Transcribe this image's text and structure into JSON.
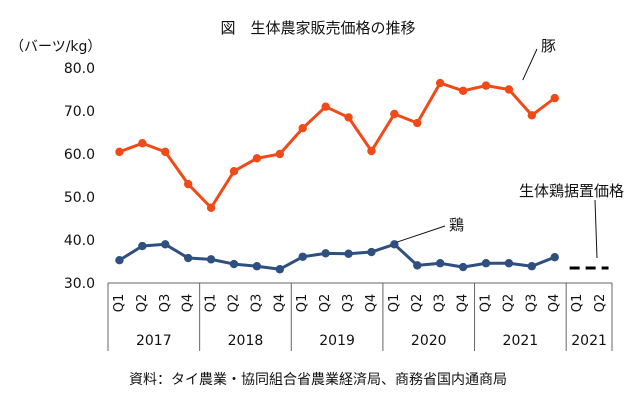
{
  "chart_data": {
    "type": "line",
    "title": "図　生体農家販売価格の推移",
    "ylabel": "（バーツ/kg）",
    "ylim": [
      30,
      80
    ],
    "yticks": [
      "30.0",
      "40.0",
      "50.0",
      "60.0",
      "70.0",
      "80.0"
    ],
    "quarters": [
      "Q1",
      "Q2",
      "Q3",
      "Q4",
      "Q1",
      "Q2",
      "Q3",
      "Q4",
      "Q1",
      "Q2",
      "Q3",
      "Q4",
      "Q1",
      "Q2",
      "Q3",
      "Q4",
      "Q1",
      "Q2",
      "Q3",
      "Q4",
      "Q1",
      "Q2"
    ],
    "years": [
      "2017",
      "2018",
      "2019",
      "2020",
      "2021",
      "2021"
    ],
    "series": [
      {
        "name": "豚",
        "color": "#f04a18",
        "values": [
          60.5,
          62.5,
          60.5,
          53.0,
          47.5,
          56.0,
          59.0,
          60.0,
          66.0,
          71.0,
          68.5,
          60.7,
          69.3,
          67.2,
          76.5,
          74.7,
          75.9,
          75.0,
          69.0,
          73.0,
          null,
          null
        ]
      },
      {
        "name": "鶏",
        "color": "#2e4f7f",
        "values": [
          35.3,
          38.6,
          39.0,
          35.8,
          35.5,
          34.4,
          33.9,
          33.2,
          36.1,
          36.9,
          36.8,
          37.2,
          39.0,
          34.1,
          34.6,
          33.7,
          34.6,
          34.6,
          33.9,
          36.0,
          null,
          null
        ]
      },
      {
        "name": "生体鶏据置価格",
        "color": "#000000",
        "style": "dashed",
        "values": [
          null,
          null,
          null,
          null,
          null,
          null,
          null,
          null,
          null,
          null,
          null,
          null,
          null,
          null,
          null,
          null,
          null,
          null,
          null,
          null,
          33.5,
          33.5
        ]
      }
    ],
    "grid": false,
    "source": "資料：タイ農業・協同組合省農業経済局、商務省国内通商局"
  }
}
